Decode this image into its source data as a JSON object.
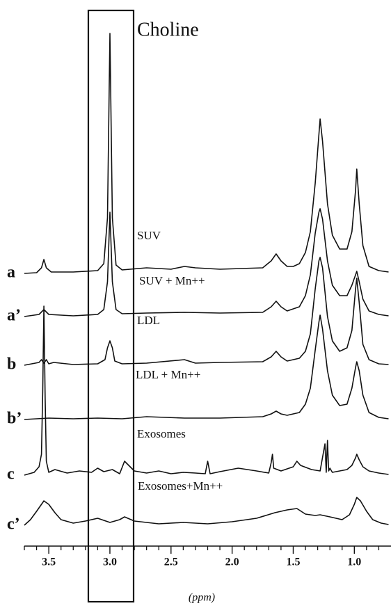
{
  "chart_data": {
    "type": "line",
    "title": "Choline",
    "xlabel": "(ppm)",
    "xlim": [
      3.7,
      0.7
    ],
    "xticks": [
      3.5,
      {
        "value": 3,
        "label": "3.0"
      },
      2.5,
      {
        "value": 2,
        "label": "2.0"
      },
      1.5,
      {
        "value": 1,
        "label": "1.0"
      }
    ],
    "xminorticks": [
      3.7,
      3.6,
      3.4,
      3.3,
      3.2,
      3.1,
      2.9,
      2.8,
      2.7,
      2.6,
      2.4,
      2.3,
      2.2,
      2.1,
      1.9,
      1.8,
      1.7,
      1.6,
      1.4,
      1.3,
      1.2,
      1.1,
      0.9,
      0.8
    ],
    "series": [
      {
        "label": "a",
        "name": "SUV",
        "color": "#111111",
        "x": [
          3.7,
          3.6,
          3.56,
          3.54,
          3.52,
          3.48,
          3.3,
          3.1,
          3.05,
          3.02,
          3.0,
          2.98,
          2.95,
          2.9,
          2.7,
          2.5,
          2.39,
          2.3,
          2.1,
          1.75,
          1.68,
          1.64,
          1.6,
          1.55,
          1.5,
          1.45,
          1.4,
          1.36,
          1.32,
          1.29,
          1.28,
          1.26,
          1.22,
          1.18,
          1.12,
          1.06,
          1.02,
          0.99,
          0.98,
          0.96,
          0.93,
          0.88,
          0.8,
          0.72
        ],
        "values": [
          0,
          1,
          8,
          20,
          8,
          2,
          2,
          4,
          14,
          80,
          345,
          80,
          12,
          5,
          8,
          6,
          10,
          8,
          6,
          8,
          18,
          28,
          18,
          10,
          10,
          14,
          30,
          60,
          130,
          200,
          222,
          190,
          100,
          55,
          35,
          35,
          60,
          120,
          150,
          100,
          40,
          10,
          4,
          2
        ]
      },
      {
        "label": "a’",
        "name": "SUV + Mn++",
        "color": "#111111",
        "x": [
          3.7,
          3.58,
          3.54,
          3.5,
          3.3,
          3.1,
          3.05,
          3.02,
          3.0,
          2.98,
          2.95,
          2.9,
          2.7,
          2.39,
          2.1,
          1.75,
          1.68,
          1.64,
          1.6,
          1.55,
          1.45,
          1.4,
          1.36,
          1.32,
          1.29,
          1.28,
          1.26,
          1.22,
          1.18,
          1.12,
          1.06,
          1.02,
          0.99,
          0.98,
          0.96,
          0.93,
          0.88,
          0.8,
          0.72
        ],
        "values": [
          0,
          3,
          10,
          3,
          1,
          3,
          10,
          50,
          150,
          50,
          10,
          4,
          5,
          6,
          5,
          6,
          14,
          22,
          14,
          8,
          14,
          30,
          60,
          120,
          150,
          155,
          140,
          80,
          45,
          30,
          30,
          45,
          60,
          65,
          50,
          25,
          8,
          3,
          1
        ]
      },
      {
        "label": "b",
        "name": "LDL",
        "color": "#111111",
        "x": [
          3.7,
          3.58,
          3.56,
          3.54,
          3.52,
          3.5,
          3.46,
          3.3,
          3.1,
          3.04,
          3.02,
          3.0,
          2.98,
          2.96,
          2.9,
          2.7,
          2.39,
          2.3,
          2.1,
          1.75,
          1.68,
          1.64,
          1.6,
          1.55,
          1.45,
          1.4,
          1.36,
          1.32,
          1.29,
          1.28,
          1.26,
          1.22,
          1.18,
          1.12,
          1.06,
          1.02,
          0.99,
          0.98,
          0.96,
          0.93,
          0.88,
          0.8,
          0.72
        ],
        "values": [
          0,
          4,
          8,
          3,
          8,
          2,
          4,
          1,
          2,
          8,
          25,
          35,
          25,
          6,
          2,
          3,
          8,
          3,
          4,
          5,
          12,
          20,
          12,
          6,
          10,
          20,
          45,
          110,
          150,
          155,
          140,
          70,
          35,
          20,
          25,
          50,
          110,
          125,
          90,
          30,
          8,
          2,
          1
        ]
      },
      {
        "label": "b’",
        "name": "LDL + Mn++",
        "color": "#111111",
        "x": [
          3.7,
          3.5,
          3.3,
          3.1,
          2.9,
          2.7,
          2.39,
          2.1,
          1.75,
          1.68,
          1.64,
          1.6,
          1.55,
          1.45,
          1.4,
          1.36,
          1.32,
          1.29,
          1.28,
          1.26,
          1.22,
          1.18,
          1.12,
          1.06,
          1.02,
          0.99,
          0.98,
          0.96,
          0.93,
          0.88,
          0.8,
          0.72
        ],
        "values": [
          0,
          2,
          1,
          2,
          1,
          4,
          2,
          2,
          4,
          8,
          12,
          8,
          6,
          10,
          22,
          45,
          100,
          140,
          150,
          130,
          70,
          35,
          20,
          22,
          45,
          75,
          83,
          70,
          35,
          10,
          3,
          1
        ]
      },
      {
        "label": "c",
        "name": "Exosomes",
        "color": "#111111",
        "x": [
          3.7,
          3.62,
          3.58,
          3.56,
          3.55,
          3.54,
          3.53,
          3.52,
          3.5,
          3.45,
          3.35,
          3.25,
          3.15,
          3.1,
          3.05,
          2.98,
          2.92,
          2.88,
          2.8,
          2.7,
          2.6,
          2.5,
          2.4,
          2.3,
          2.22,
          2.2,
          2.18,
          2.1,
          1.95,
          1.8,
          1.7,
          1.68,
          1.67,
          1.66,
          1.6,
          1.5,
          1.47,
          1.44,
          1.35,
          1.28,
          1.24,
          1.23,
          1.22,
          1.21,
          1.2,
          1.18,
          1.12,
          1.06,
          1.02,
          0.99,
          0.98,
          0.96,
          0.93,
          0.88,
          0.8,
          0.72
        ],
        "values": [
          0,
          4,
          12,
          30,
          120,
          243,
          110,
          20,
          4,
          8,
          3,
          6,
          4,
          10,
          5,
          8,
          2,
          20,
          6,
          3,
          6,
          2,
          4,
          3,
          2,
          20,
          2,
          5,
          10,
          6,
          3,
          18,
          30,
          10,
          6,
          12,
          20,
          14,
          8,
          6,
          45,
          4,
          50,
          6,
          10,
          4,
          6,
          8,
          14,
          25,
          30,
          22,
          12,
          6,
          3,
          1
        ]
      },
      {
        "label": "c’",
        "name": "Exosomes+Mn++",
        "color": "#111111",
        "x": [
          3.7,
          3.65,
          3.6,
          3.56,
          3.54,
          3.5,
          3.45,
          3.4,
          3.3,
          3.2,
          3.1,
          3.0,
          2.92,
          2.88,
          2.8,
          2.6,
          2.4,
          2.2,
          2.0,
          1.8,
          1.65,
          1.55,
          1.47,
          1.4,
          1.32,
          1.28,
          1.2,
          1.1,
          1.04,
          1.0,
          0.98,
          0.95,
          0.9,
          0.85,
          0.78,
          0.72
        ],
        "values": [
          0,
          8,
          20,
          30,
          35,
          30,
          18,
          8,
          3,
          6,
          10,
          4,
          8,
          12,
          6,
          2,
          4,
          2,
          5,
          10,
          18,
          22,
          24,
          16,
          14,
          15,
          12,
          8,
          15,
          30,
          40,
          35,
          20,
          8,
          3,
          1
        ]
      }
    ]
  }
}
